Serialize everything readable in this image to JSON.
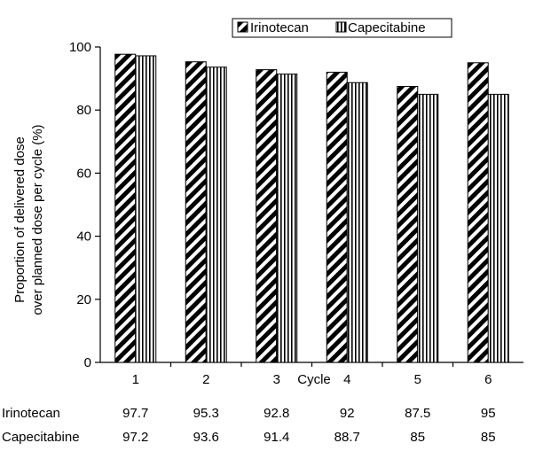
{
  "chart_data": {
    "type": "bar",
    "title": "",
    "xlabel": "Cycle",
    "ylabel_lines": [
      "Proportion of delivered dose",
      "over planned dose per cycle (%)"
    ],
    "ylim": [
      0,
      100
    ],
    "yticks": [
      0,
      20,
      40,
      60,
      80,
      100
    ],
    "categories": [
      "1",
      "2",
      "3",
      "4",
      "5",
      "6"
    ],
    "series": [
      {
        "name": "Irinotecan",
        "values": [
          97.7,
          95.3,
          92.8,
          92,
          87.5,
          95
        ],
        "table_values": [
          "97.7",
          "95.3",
          "92.8",
          "92",
          "87.5",
          "95"
        ],
        "pattern": "diagonal-hatch"
      },
      {
        "name": "Capecitabine",
        "values": [
          97.2,
          93.6,
          91.4,
          88.7,
          85,
          85
        ],
        "table_values": [
          "97.2",
          "93.6",
          "91.4",
          "88.7",
          "85",
          "85"
        ],
        "pattern": "vertical-stripes"
      }
    ],
    "legend_position": "top-right",
    "grid": false,
    "colors": {
      "ink": "#000000",
      "background": "#ffffff"
    }
  }
}
